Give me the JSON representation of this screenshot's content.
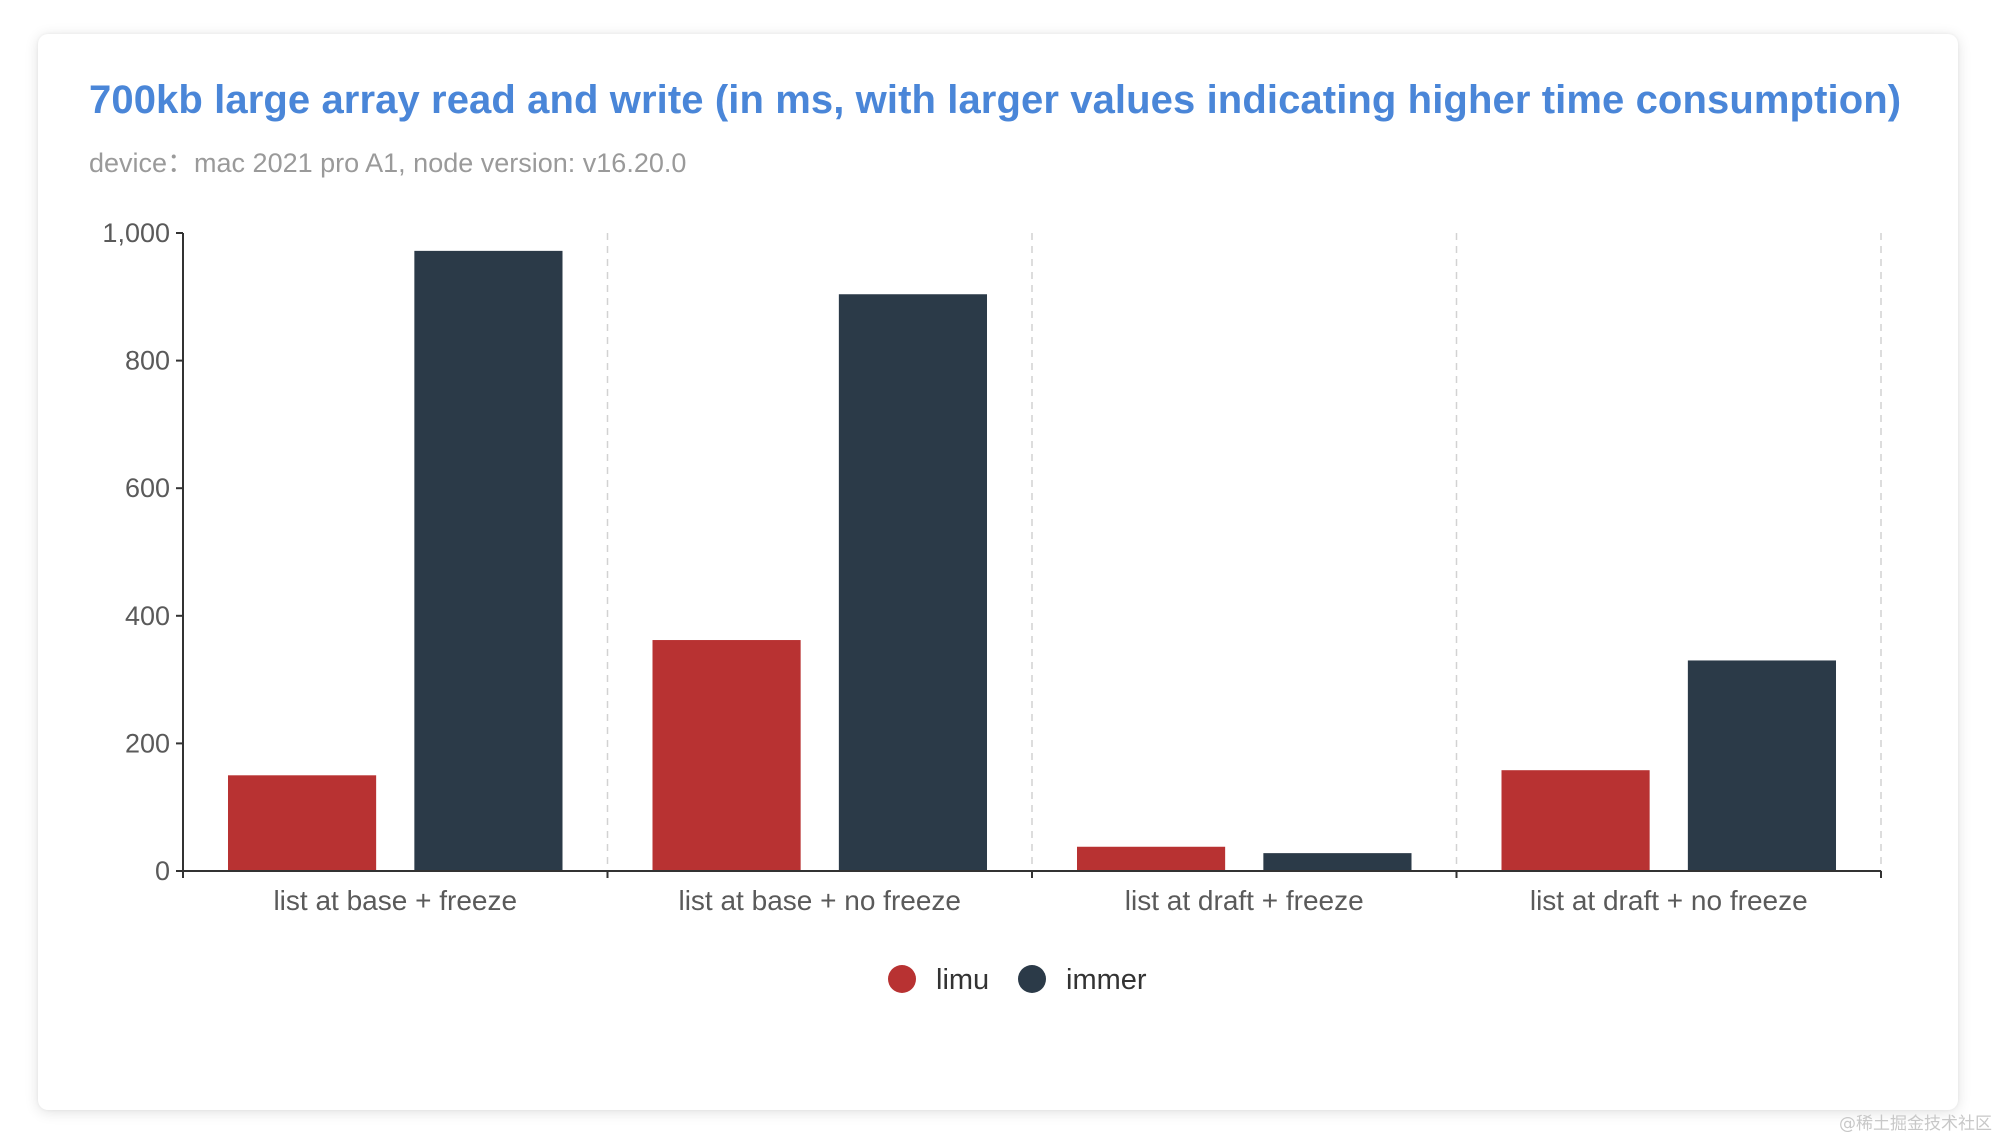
{
  "chart_data": {
    "type": "bar",
    "title": "700kb large array read and write (in ms, with larger values indicating higher time consumption)",
    "subtitle": "device：mac 2021 pro A1, node version: v16.20.0",
    "categories": [
      "list at base + freeze",
      "list at base + no freeze",
      "list at draft + freeze",
      "list at draft + no freeze"
    ],
    "series": [
      {
        "name": "limu",
        "color": "#b83232",
        "values": [
          150,
          362,
          38,
          158
        ]
      },
      {
        "name": "immer",
        "color": "#2b3a48",
        "values": [
          972,
          904,
          28,
          330
        ]
      }
    ],
    "ylim": [
      0,
      1000
    ],
    "yticks": [
      0,
      200,
      400,
      600,
      800,
      1000
    ],
    "ytick_labels": [
      "0",
      "200",
      "400",
      "600",
      "800",
      "1,000"
    ],
    "xlabel": "",
    "ylabel": "",
    "grid": "vertical dashed separators between categories",
    "legend_position": "bottom-center"
  },
  "watermark": "@稀土掘金技术社区"
}
